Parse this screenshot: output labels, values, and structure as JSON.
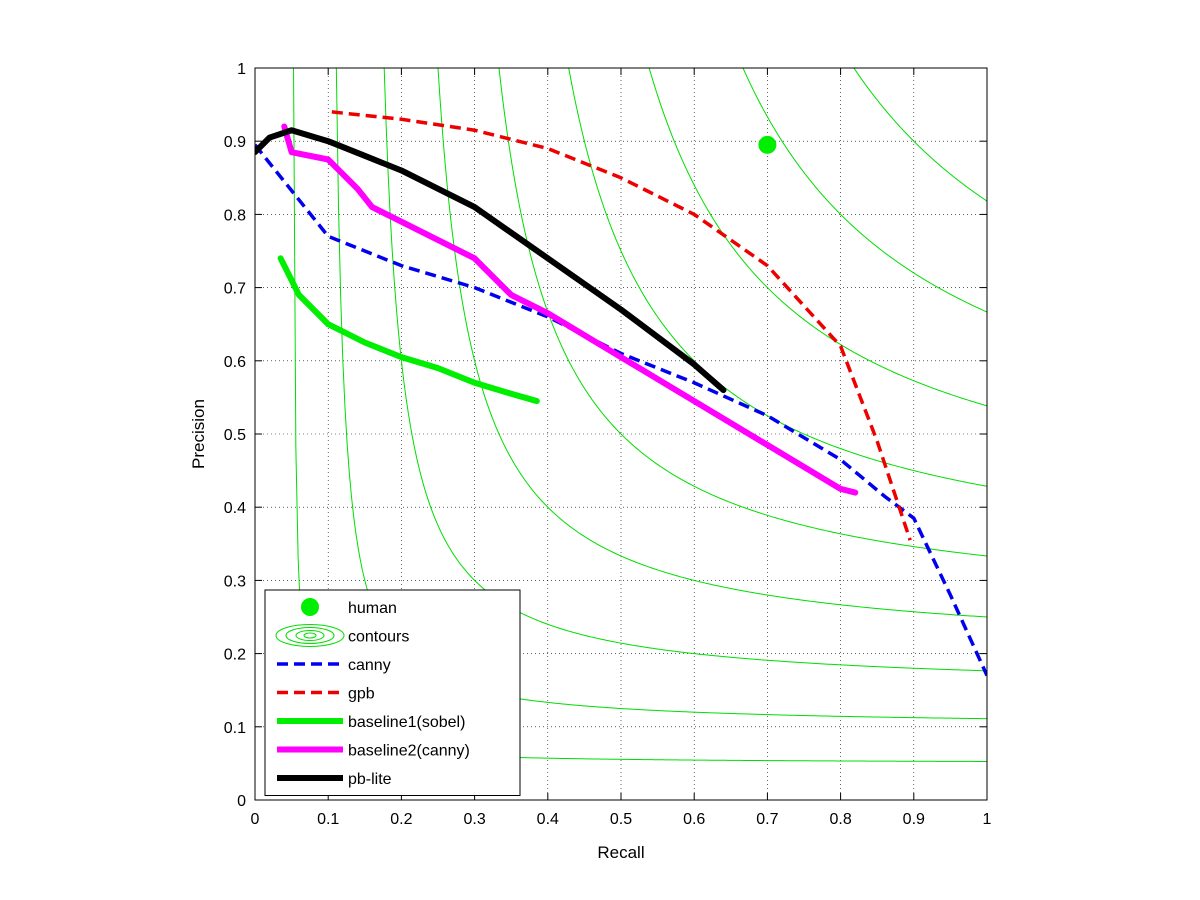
{
  "chart_data": {
    "type": "line",
    "title": "",
    "xlabel": "Recall",
    "ylabel": "Precision",
    "xlim": [
      0,
      1
    ],
    "ylim": [
      0,
      1
    ],
    "grid": true,
    "legend_position": "bottom-left",
    "x_ticks": [
      "0",
      "0.1",
      "0.2",
      "0.3",
      "0.4",
      "0.5",
      "0.6",
      "0.7",
      "0.8",
      "0.9",
      "1"
    ],
    "y_ticks": [
      "0",
      "0.1",
      "0.2",
      "0.3",
      "0.4",
      "0.5",
      "0.6",
      "0.7",
      "0.8",
      "0.9",
      "1"
    ],
    "contour_f_levels": [
      0.1,
      0.2,
      0.3,
      0.4,
      0.5,
      0.6,
      0.7,
      0.8,
      0.9
    ],
    "contour_color": "#00dd00",
    "series": [
      {
        "name": "human",
        "style": "point",
        "color": "#00ee00",
        "points": [
          [
            0.7,
            0.895
          ]
        ]
      },
      {
        "name": "contours",
        "style": "contour",
        "color": "#00dd00",
        "points": []
      },
      {
        "name": "canny",
        "style": "dashed",
        "color": "#0000ee",
        "points": [
          [
            0.0,
            0.895
          ],
          [
            0.1,
            0.77
          ],
          [
            0.2,
            0.73
          ],
          [
            0.3,
            0.7
          ],
          [
            0.4,
            0.66
          ],
          [
            0.5,
            0.61
          ],
          [
            0.6,
            0.57
          ],
          [
            0.7,
            0.525
          ],
          [
            0.8,
            0.465
          ],
          [
            0.86,
            0.415
          ],
          [
            0.9,
            0.385
          ],
          [
            0.95,
            0.28
          ],
          [
            1.0,
            0.17
          ]
        ]
      },
      {
        "name": "gpb",
        "style": "dashed",
        "color": "#ee0000",
        "points": [
          [
            0.105,
            0.94
          ],
          [
            0.2,
            0.93
          ],
          [
            0.3,
            0.915
          ],
          [
            0.4,
            0.89
          ],
          [
            0.5,
            0.85
          ],
          [
            0.6,
            0.8
          ],
          [
            0.7,
            0.73
          ],
          [
            0.8,
            0.62
          ],
          [
            0.85,
            0.49
          ],
          [
            0.88,
            0.4
          ],
          [
            0.895,
            0.355
          ]
        ]
      },
      {
        "name": "baseline1(sobel)",
        "style": "solid",
        "color": "#00ee00",
        "points": [
          [
            0.035,
            0.74
          ],
          [
            0.045,
            0.72
          ],
          [
            0.06,
            0.69
          ],
          [
            0.1,
            0.65
          ],
          [
            0.15,
            0.625
          ],
          [
            0.2,
            0.605
          ],
          [
            0.25,
            0.59
          ],
          [
            0.3,
            0.57
          ],
          [
            0.35,
            0.555
          ],
          [
            0.385,
            0.545
          ]
        ]
      },
      {
        "name": "baseline2(canny)",
        "style": "solid",
        "color": "#ff00ff",
        "points": [
          [
            0.04,
            0.92
          ],
          [
            0.05,
            0.885
          ],
          [
            0.1,
            0.875
          ],
          [
            0.14,
            0.835
          ],
          [
            0.16,
            0.81
          ],
          [
            0.2,
            0.79
          ],
          [
            0.3,
            0.74
          ],
          [
            0.35,
            0.69
          ],
          [
            0.4,
            0.665
          ],
          [
            0.5,
            0.605
          ],
          [
            0.6,
            0.545
          ],
          [
            0.7,
            0.485
          ],
          [
            0.8,
            0.425
          ],
          [
            0.82,
            0.42
          ]
        ]
      },
      {
        "name": "pb-lite",
        "style": "solid",
        "color": "#000000",
        "points": [
          [
            0.0,
            0.885
          ],
          [
            0.02,
            0.905
          ],
          [
            0.05,
            0.915
          ],
          [
            0.1,
            0.9
          ],
          [
            0.15,
            0.88
          ],
          [
            0.2,
            0.86
          ],
          [
            0.3,
            0.81
          ],
          [
            0.4,
            0.74
          ],
          [
            0.5,
            0.67
          ],
          [
            0.6,
            0.595
          ],
          [
            0.64,
            0.56
          ]
        ]
      }
    ]
  }
}
